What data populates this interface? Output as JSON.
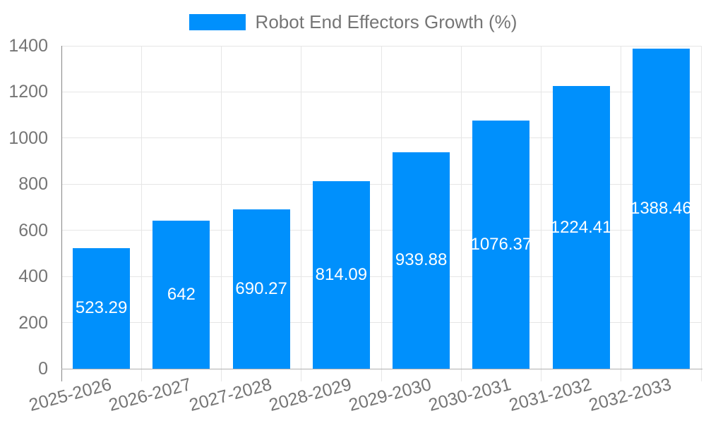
{
  "legend": {
    "label": "Robot End Effectors Growth (%)"
  },
  "colors": {
    "bar": "#0090fc",
    "grid": "#e6e6e6",
    "axis_text": "#757575",
    "value_label_text": "#ffffff",
    "y_axis_line": "#878787",
    "x_baseline": "#b0b0b0",
    "background": "#ffffff"
  },
  "chart_data": {
    "type": "bar",
    "title": "",
    "legend_entries": [
      "Robot End Effectors Growth (%)"
    ],
    "legend_position": "top",
    "categories": [
      "2025-2026",
      "2026-2027",
      "2027-2028",
      "2028-2029",
      "2029-2030",
      "2030-2031",
      "2031-2032",
      "2032-2033"
    ],
    "series": [
      {
        "name": "Robot End Effectors Growth (%)",
        "values": [
          523.29,
          642,
          690.27,
          814.09,
          939.88,
          1076.37,
          1224.41,
          1388.46
        ]
      }
    ],
    "value_labels": [
      "523.29",
      "642",
      "690.27",
      "814.09",
      "939.88",
      "1076.37",
      "1224.41",
      "1388.46"
    ],
    "xlabel": "",
    "ylabel": "",
    "ylim": [
      0,
      1400
    ],
    "ytick_step": 200,
    "yticks": [
      0,
      200,
      400,
      600,
      800,
      1000,
      1200,
      1400
    ],
    "grid": true,
    "x_label_rotation_deg": -15
  }
}
